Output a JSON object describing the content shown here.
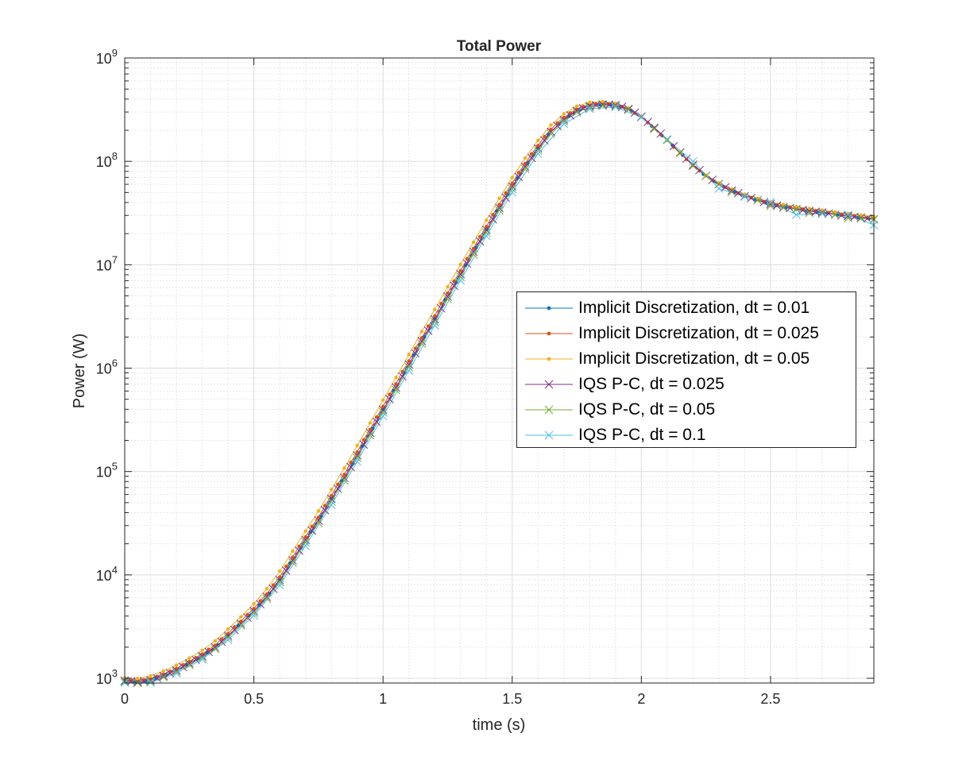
{
  "chart_data": {
    "type": "line",
    "title": "Total Power",
    "xlabel": "time (s)",
    "ylabel": "Power (W)",
    "xlim": [
      0,
      2.9
    ],
    "ylim": [
      900,
      1000000000
    ],
    "yscale": "log",
    "grid": true,
    "minor_grid": true,
    "legend_position": "right-center",
    "x_ticks": [
      {
        "value": 0,
        "label": "0"
      },
      {
        "value": 0.5,
        "label": "0.5"
      },
      {
        "value": 1,
        "label": "1"
      },
      {
        "value": 1.5,
        "label": "1.5"
      },
      {
        "value": 2,
        "label": "2"
      },
      {
        "value": 2.5,
        "label": "2.5"
      }
    ],
    "y_ticks": [
      {
        "value": 1000,
        "base": "10",
        "exp": "3"
      },
      {
        "value": 10000,
        "base": "10",
        "exp": "4"
      },
      {
        "value": 100000,
        "base": "10",
        "exp": "5"
      },
      {
        "value": 1000000,
        "base": "10",
        "exp": "6"
      },
      {
        "value": 10000000,
        "base": "10",
        "exp": "7"
      },
      {
        "value": 100000000,
        "base": "10",
        "exp": "8"
      },
      {
        "value": 1000000000,
        "base": "10",
        "exp": "9"
      }
    ],
    "reference_curve": {
      "x": [
        0,
        0.05,
        0.1,
        0.15,
        0.2,
        0.25,
        0.3,
        0.35,
        0.4,
        0.45,
        0.5,
        0.55,
        0.6,
        0.65,
        0.7,
        0.75,
        0.8,
        0.85,
        0.9,
        0.95,
        1.0,
        1.05,
        1.1,
        1.15,
        1.2,
        1.25,
        1.3,
        1.35,
        1.4,
        1.45,
        1.5,
        1.55,
        1.6,
        1.65,
        1.7,
        1.75,
        1.8,
        1.85,
        1.9,
        1.95,
        2.0,
        2.05,
        2.1,
        2.15,
        2.2,
        2.25,
        2.3,
        2.35,
        2.4,
        2.45,
        2.5,
        2.55,
        2.6,
        2.65,
        2.7,
        2.75,
        2.8,
        2.85,
        2.9
      ],
      "y": [
        950,
        920,
        960,
        1060,
        1200,
        1400,
        1650,
        2000,
        2600,
        3400,
        4500,
        6200,
        9000,
        14000,
        22000,
        34000,
        55000,
        88000,
        145000,
        240000,
        400000,
        660000,
        1100000,
        1850000,
        3000000,
        5000000,
        8200000,
        13500000,
        22000000,
        36000000,
        58000000,
        90000000,
        135000000,
        195000000,
        255000000,
        310000000,
        345000000,
        355000000,
        350000000,
        320000000,
        270000000,
        210000000,
        160000000,
        120000000,
        92000000,
        72000000,
        60000000,
        52000000,
        46000000,
        42000000,
        38500000,
        36000000,
        34500000,
        33000000,
        32000000,
        30500000,
        29500000,
        28500000,
        27500000
      ]
    },
    "series": [
      {
        "name": "Implicit Discretization, dt = 0.01",
        "color": "#0072BD",
        "marker": "dot",
        "dt": 0.01,
        "x_shift": 0.0,
        "log_offset": 0.0,
        "wiggle": 0.0
      },
      {
        "name": "Implicit Discretization, dt = 0.025",
        "color": "#D95319",
        "marker": "dot",
        "dt": 0.025,
        "x_shift": -0.005,
        "log_offset": 0.01,
        "wiggle": 0.0
      },
      {
        "name": "Implicit Discretization, dt = 0.05",
        "color": "#EDB120",
        "marker": "dot",
        "dt": 0.05,
        "x_shift": -0.015,
        "log_offset": 0.03,
        "wiggle": 0.0
      },
      {
        "name": "IQS P-C, dt = 0.025",
        "color": "#7E2F8E",
        "marker": "x",
        "dt": 0.025,
        "x_shift": 0.002,
        "log_offset": 0.0,
        "wiggle": 0.0
      },
      {
        "name": "IQS P-C, dt = 0.05",
        "color": "#77AC30",
        "marker": "x",
        "dt": 0.05,
        "x_shift": 0.006,
        "log_offset": -0.01,
        "wiggle": 0.01
      },
      {
        "name": "IQS P-C, dt = 0.1",
        "color": "#4DBEEE",
        "marker": "x",
        "dt": 0.1,
        "x_shift": 0.012,
        "log_offset": -0.02,
        "wiggle": 0.04
      }
    ]
  }
}
